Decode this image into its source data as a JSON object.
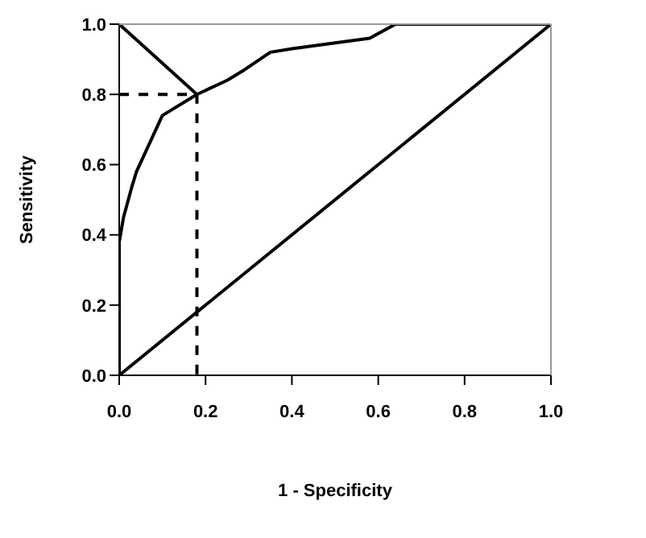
{
  "chart_data": {
    "type": "line",
    "xlabel": "1 - Specificity",
    "ylabel": "Sensitivity",
    "xlim": [
      0,
      1
    ],
    "ylim": [
      0,
      1
    ],
    "xticks": [
      {
        "value": 0,
        "label": "0.0"
      },
      0.2,
      0.4,
      0.6,
      0.8,
      {
        "value": 1,
        "label": "1.0"
      }
    ],
    "yticks": [
      {
        "value": 0,
        "label": "0.0"
      },
      0.2,
      0.4,
      0.6,
      0.8,
      {
        "value": 1,
        "label": "1.0"
      }
    ],
    "marker": "none",
    "series": [
      {
        "color": "#000000",
        "x": [
          0,
          0,
          0.01,
          0.03,
          0.04,
          0.1,
          0.18,
          0.25,
          0.29,
          0.35,
          0.4,
          0.58,
          0.64,
          1
        ],
        "values": [
          0,
          0.38,
          0.45,
          0.54,
          0.58,
          0.74,
          0.8,
          0.84,
          0.87,
          0.92,
          0.93,
          0.96,
          1,
          1
        ]
      },
      {
        "color": "#000000",
        "x": [
          0,
          1
        ],
        "values": [
          0,
          1
        ]
      },
      {
        "color": "#000000",
        "x": [
          0,
          0.18
        ],
        "values": [
          1,
          0.8
        ]
      },
      {
        "color": "#000000",
        "line_style": "dashed",
        "x": [
          0,
          0.18,
          0.18
        ],
        "values": [
          0.8,
          0.8,
          0
        ]
      }
    ]
  }
}
